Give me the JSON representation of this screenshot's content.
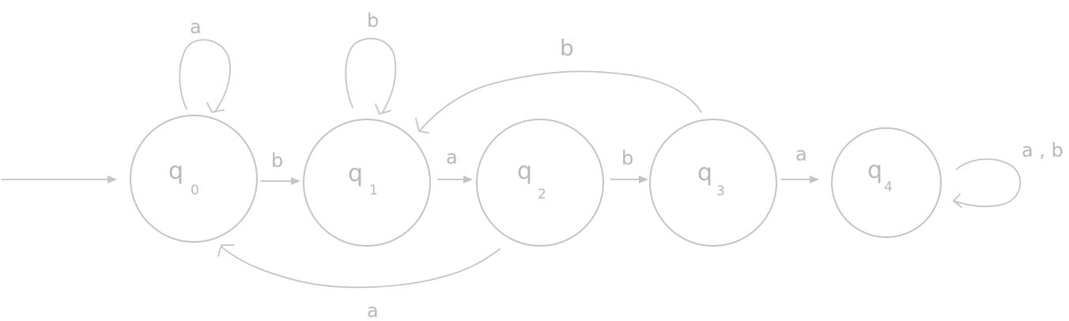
{
  "states": [
    {
      "id": "q0",
      "base": "q",
      "sub": "0"
    },
    {
      "id": "q1",
      "base": "q",
      "sub": "1"
    },
    {
      "id": "q2",
      "base": "q",
      "sub": "2"
    },
    {
      "id": "q3",
      "base": "q",
      "sub": "3"
    },
    {
      "id": "q4",
      "base": "q",
      "sub": "4"
    }
  ],
  "start_state": "q0",
  "transitions": [
    {
      "from": "q0",
      "to": "q0",
      "label": "a"
    },
    {
      "from": "q0",
      "to": "q1",
      "label": "b"
    },
    {
      "from": "q1",
      "to": "q1",
      "label": "b"
    },
    {
      "from": "q1",
      "to": "q2",
      "label": "a"
    },
    {
      "from": "q2",
      "to": "q3",
      "label": "b"
    },
    {
      "from": "q2",
      "to": "q0",
      "label": "a"
    },
    {
      "from": "q3",
      "to": "q4",
      "label": "a"
    },
    {
      "from": "q3",
      "to": "q1",
      "label": "b"
    },
    {
      "from": "q4",
      "to": "q4",
      "label": "a , b"
    }
  ]
}
